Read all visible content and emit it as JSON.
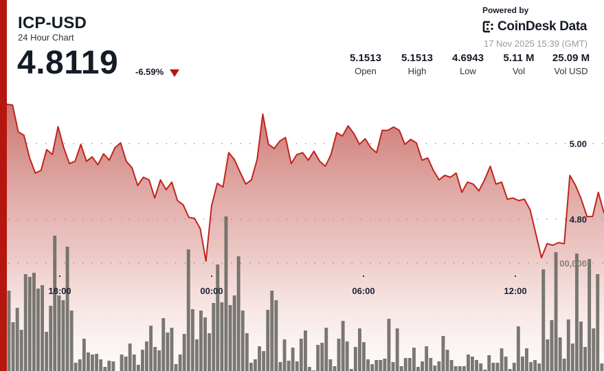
{
  "header": {
    "symbol": "ICP-USD",
    "subtitle": "24 Hour Chart",
    "price": "4.8119",
    "change": "-6.59%",
    "change_direction": "down"
  },
  "branding": {
    "powered_by": "Powered by",
    "brand": "CoinDesk Data",
    "timestamp": "17 Nov 2025 15:39 (GMT)"
  },
  "stats": [
    {
      "value": "5.1513",
      "label": "Open"
    },
    {
      "value": "5.1513",
      "label": "High"
    },
    {
      "value": "4.6943",
      "label": "Low"
    },
    {
      "value": "5.11 M",
      "label": "Vol"
    },
    {
      "value": "25.09 M",
      "label": "Vol USD"
    }
  ],
  "colors": {
    "accent": "#b5170f",
    "line": "#c0231b",
    "fill_top": "#c96e68",
    "volume_bar": "#6e6c68"
  },
  "chart_data": {
    "type": "line",
    "title": "",
    "x_tick_labels": [
      "18:00",
      "00:00",
      "06:00",
      "12:00"
    ],
    "y_tick_labels": [
      "5.00",
      "4.80",
      "00,000"
    ],
    "ylim": [
      4.62,
      5.12
    ],
    "grid": "dotted horizontal",
    "price_series": [
      5.104,
      5.102,
      5.031,
      5.022,
      4.962,
      4.922,
      4.929,
      4.984,
      4.971,
      5.045,
      4.989,
      4.947,
      4.953,
      4.998,
      4.953,
      4.965,
      4.944,
      4.973,
      4.956,
      4.989,
      5.002,
      4.953,
      4.936,
      4.889,
      4.911,
      4.904,
      4.856,
      4.904,
      4.878,
      4.898,
      4.849,
      4.838,
      4.805,
      4.802,
      4.775,
      4.689,
      4.835,
      4.895,
      4.885,
      4.976,
      4.958,
      4.925,
      4.893,
      4.904,
      4.958,
      5.078,
      4.998,
      4.987,
      5.007,
      5.016,
      4.947,
      4.971,
      4.976,
      4.956,
      4.98,
      4.953,
      4.94,
      4.971,
      5.029,
      5.02,
      5.047,
      5.027,
      4.998,
      5.013,
      4.989,
      4.976,
      5.035,
      5.035,
      5.044,
      5.035,
      4.998,
      5.011,
      5.002,
      4.956,
      4.962,
      4.929,
      4.904,
      4.916,
      4.911,
      4.922,
      4.871,
      4.898,
      4.893,
      4.875,
      4.904,
      4.94,
      4.893,
      4.898,
      4.853,
      4.856,
      4.849,
      4.853,
      4.825,
      4.762,
      4.698,
      4.735,
      4.731,
      4.738,
      4.735,
      4.916,
      4.889,
      4.853,
      4.807,
      4.807,
      4.871,
      4.816
    ],
    "volume_series": [
      117,
      71,
      92,
      60,
      141,
      137,
      143,
      120,
      125,
      57,
      95,
      197,
      110,
      103,
      181,
      88,
      12,
      17,
      47,
      27,
      24,
      25,
      17,
      6,
      15,
      14,
      0,
      24,
      21,
      40,
      24,
      9,
      31,
      43,
      66,
      35,
      30,
      77,
      56,
      63,
      10,
      24,
      54,
      177,
      90,
      46,
      88,
      78,
      55,
      99,
      155,
      100,
      225,
      96,
      110,
      167,
      88,
      55,
      12,
      17,
      36,
      29,
      89,
      117,
      103,
      13,
      46,
      15,
      34,
      14,
      47,
      59,
      6,
      1,
      38,
      41,
      63,
      17,
      7,
      47,
      73,
      43,
      3,
      35,
      62,
      42,
      17,
      10,
      16,
      16,
      18,
      76,
      13,
      62,
      7,
      19,
      19,
      34,
      6,
      14,
      36,
      19,
      8,
      14,
      51,
      31,
      16,
      7,
      7,
      7,
      24,
      21,
      16,
      11,
      2,
      23,
      12,
      12,
      33,
      21,
      3,
      12,
      65,
      21,
      33,
      13,
      16,
      11,
      148,
      46,
      74,
      173,
      49,
      18,
      75,
      40,
      171,
      72,
      35,
      163,
      62,
      141,
      11
    ]
  }
}
